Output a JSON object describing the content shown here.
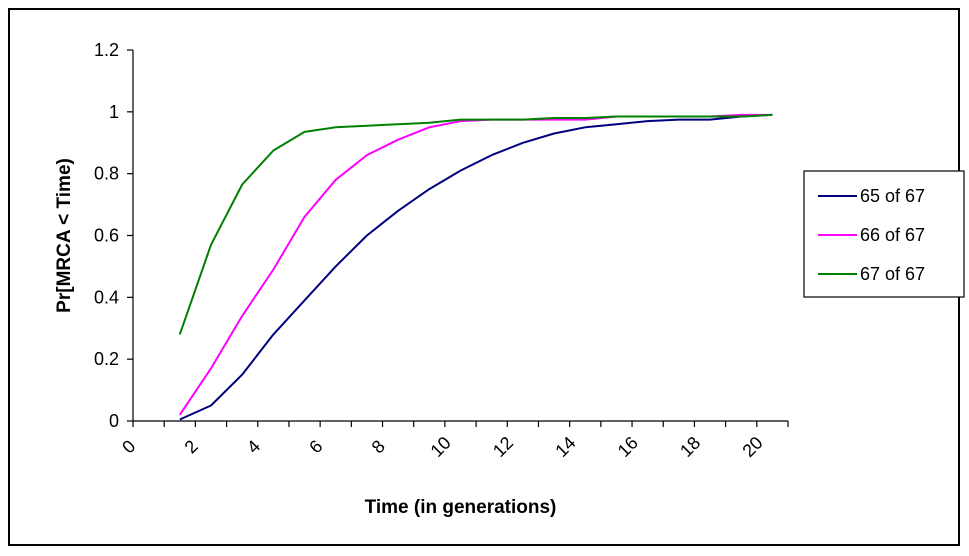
{
  "chart_data": {
    "type": "line",
    "xlabel": "Time (in generations)",
    "ylabel": "Pr[MRCA < Time)",
    "xlim": [
      0,
      21
    ],
    "ylim": [
      0,
      1.2
    ],
    "x_ticks": [
      "0",
      "2",
      "4",
      "6",
      "8",
      "10",
      "12",
      "14",
      "16",
      "18",
      "20"
    ],
    "y_ticks": [
      "0",
      "0.2",
      "0.4",
      "0.6",
      "0.8",
      "1",
      "1.2"
    ],
    "grid": false,
    "legend_position": "right",
    "x": [
      1.5,
      2.5,
      3.5,
      4.5,
      5.5,
      6.5,
      7.5,
      8.5,
      9.5,
      10.5,
      11.5,
      12.5,
      13.5,
      14.5,
      15.5,
      16.5,
      17.5,
      18.5,
      19.5,
      20.5
    ],
    "series": [
      {
        "name": "65 of 67",
        "color": "#000080",
        "values": [
          0.005,
          0.05,
          0.15,
          0.28,
          0.39,
          0.5,
          0.6,
          0.68,
          0.75,
          0.81,
          0.86,
          0.9,
          0.93,
          0.95,
          0.96,
          0.97,
          0.975,
          0.975,
          0.985,
          0.99
        ]
      },
      {
        "name": "66 of 67",
        "color": "#ff00ff",
        "values": [
          0.02,
          0.17,
          0.34,
          0.49,
          0.66,
          0.78,
          0.86,
          0.91,
          0.95,
          0.97,
          0.975,
          0.975,
          0.975,
          0.975,
          0.985,
          0.985,
          0.985,
          0.985,
          0.99,
          0.99
        ]
      },
      {
        "name": "67 of 67",
        "color": "#008000",
        "values": [
          0.28,
          0.57,
          0.765,
          0.875,
          0.935,
          0.95,
          0.955,
          0.96,
          0.965,
          0.975,
          0.975,
          0.975,
          0.98,
          0.98,
          0.985,
          0.985,
          0.985,
          0.985,
          0.985,
          0.99
        ]
      }
    ]
  }
}
